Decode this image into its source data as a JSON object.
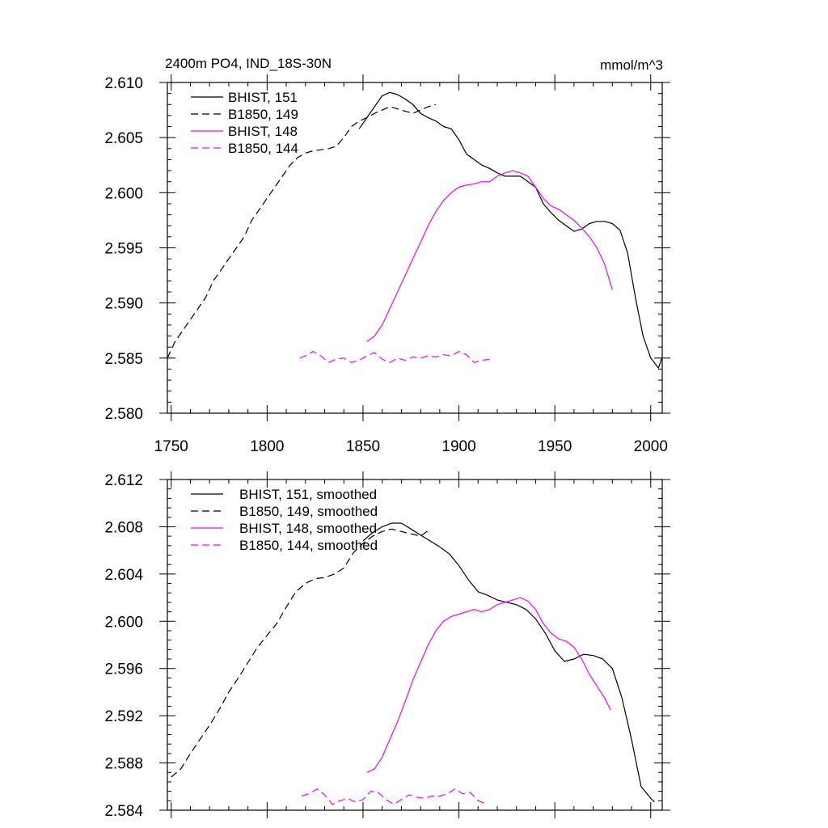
{
  "chart_data": [
    {
      "type": "line",
      "title": "2400m PO4, IND_18S-30N",
      "units": "mmol/m^3",
      "xlim": [
        1748,
        2006
      ],
      "ylim": [
        2.58,
        2.61
      ],
      "x_ticks": [
        "1750",
        "1800",
        "1850",
        "1900",
        "1950",
        "2000"
      ],
      "x_tick_values": [
        1750,
        1800,
        1850,
        1900,
        1950,
        2000
      ],
      "y_ticks": [
        "2.580",
        "2.585",
        "2.590",
        "2.595",
        "2.600",
        "2.605",
        "2.610"
      ],
      "y_tick_values": [
        2.58,
        2.585,
        2.59,
        2.595,
        2.6,
        2.605,
        2.61
      ],
      "legend_position": "top-left",
      "series": [
        {
          "name": "BHIST, 151",
          "color": "#000000",
          "dash": "solid",
          "x": [
            1848,
            1852,
            1856,
            1860,
            1864,
            1868,
            1872,
            1876,
            1880,
            1884,
            1888,
            1892,
            1896,
            1900,
            1904,
            1908,
            1912,
            1916,
            1920,
            1924,
            1928,
            1932,
            1936,
            1940,
            1944,
            1948,
            1952,
            1956,
            1960,
            1964,
            1968,
            1972,
            1976,
            1980,
            1984,
            1988,
            1992,
            1996,
            2000,
            2004,
            2006
          ],
          "y": [
            2.6058,
            2.6068,
            2.6078,
            2.6088,
            2.6091,
            2.6089,
            2.6085,
            2.608,
            2.6072,
            2.6068,
            2.6065,
            2.606,
            2.6058,
            2.6048,
            2.6035,
            2.603,
            2.6025,
            2.6022,
            2.6018,
            2.6015,
            2.6015,
            2.6015,
            2.601,
            2.6005,
            2.599,
            2.5982,
            2.5975,
            2.597,
            2.5965,
            2.5967,
            2.5972,
            2.5974,
            2.5974,
            2.5972,
            2.5966,
            2.5945,
            2.5905,
            2.587,
            2.585,
            2.5841,
            2.5851
          ]
        },
        {
          "name": "B1850, 149",
          "color": "#000000",
          "dash": "dashed",
          "x": [
            1748,
            1752,
            1756,
            1760,
            1764,
            1768,
            1772,
            1776,
            1780,
            1784,
            1788,
            1792,
            1796,
            1800,
            1804,
            1808,
            1812,
            1816,
            1820,
            1824,
            1828,
            1832,
            1836,
            1840,
            1844,
            1848,
            1852,
            1856,
            1860,
            1864,
            1868,
            1872,
            1876,
            1880,
            1884,
            1888
          ],
          "y": [
            2.585,
            2.5865,
            2.5875,
            2.5885,
            2.5895,
            2.5905,
            2.592,
            2.593,
            2.594,
            2.595,
            2.596,
            2.5975,
            2.5985,
            2.5995,
            2.6005,
            2.6015,
            2.6025,
            2.6032,
            2.6036,
            2.6038,
            2.6039,
            2.604,
            2.6042,
            2.605,
            2.606,
            2.6065,
            2.6068,
            2.6072,
            2.6075,
            2.6078,
            2.6076,
            2.6074,
            2.6072,
            2.6075,
            2.6078,
            2.608
          ]
        },
        {
          "name": "BHIST, 148",
          "color": "#ff00ff",
          "dash": "solid",
          "x": [
            1852,
            1856,
            1860,
            1864,
            1868,
            1872,
            1876,
            1880,
            1884,
            1888,
            1892,
            1896,
            1900,
            1904,
            1908,
            1912,
            1916,
            1920,
            1924,
            1928,
            1932,
            1936,
            1940,
            1944,
            1948,
            1952,
            1956,
            1960,
            1964,
            1968,
            1972,
            1976,
            1980
          ],
          "y": [
            2.5865,
            2.587,
            2.588,
            2.5895,
            2.591,
            2.5925,
            2.594,
            2.5955,
            2.597,
            2.5983,
            2.5993,
            2.6,
            2.6005,
            2.6007,
            2.6008,
            2.601,
            2.601,
            2.6015,
            2.6018,
            2.602,
            2.6018,
            2.6015,
            2.6005,
            2.5995,
            2.5988,
            2.5985,
            2.598,
            2.5975,
            2.5968,
            2.596,
            2.595,
            2.5935,
            2.5912
          ]
        },
        {
          "name": "B1850, 144",
          "color": "#ff00ff",
          "dash": "dashed",
          "x": [
            1817,
            1820,
            1824,
            1828,
            1832,
            1836,
            1840,
            1844,
            1848,
            1852,
            1856,
            1860,
            1864,
            1868,
            1872,
            1876,
            1880,
            1884,
            1888,
            1892,
            1896,
            1900,
            1904,
            1908,
            1912,
            1916
          ],
          "y": [
            2.585,
            2.5852,
            2.5856,
            2.5852,
            2.5846,
            2.5849,
            2.585,
            2.5846,
            2.5848,
            2.5852,
            2.5855,
            2.5849,
            2.5846,
            2.585,
            2.5848,
            2.5851,
            2.585,
            2.5852,
            2.5851,
            2.5853,
            2.5852,
            2.5856,
            2.5853,
            2.5846,
            2.5848,
            2.5849
          ]
        }
      ]
    },
    {
      "type": "line",
      "xlim": [
        1748,
        2006
      ],
      "ylim": [
        2.584,
        2.612
      ],
      "x_tick_values": [
        1750,
        1800,
        1850,
        1900,
        1950,
        2000
      ],
      "y_ticks": [
        "2.584",
        "2.588",
        "2.592",
        "2.596",
        "2.600",
        "2.604",
        "2.608",
        "2.612"
      ],
      "y_tick_values": [
        2.584,
        2.588,
        2.592,
        2.596,
        2.6,
        2.604,
        2.608,
        2.612
      ],
      "legend_position": "top-left",
      "series": [
        {
          "name": "BHIST, 151, smoothed",
          "color": "#000000",
          "dash": "solid",
          "x": [
            1850,
            1855,
            1860,
            1865,
            1870,
            1875,
            1880,
            1885,
            1890,
            1895,
            1900,
            1905,
            1910,
            1915,
            1920,
            1925,
            1930,
            1935,
            1940,
            1945,
            1950,
            1955,
            1960,
            1965,
            1970,
            1975,
            1980,
            1985,
            1990,
            1995,
            2000,
            2002
          ],
          "y": [
            2.6068,
            2.6075,
            2.608,
            2.6083,
            2.6083,
            2.6078,
            2.6073,
            2.6068,
            2.6063,
            2.6057,
            2.6047,
            2.6035,
            2.6025,
            2.6022,
            2.6018,
            2.6016,
            2.6014,
            2.601,
            2.6002,
            2.599,
            2.5975,
            2.5966,
            2.5968,
            2.5972,
            2.5971,
            2.5968,
            2.596,
            2.5935,
            2.59,
            2.586,
            2.585,
            2.5847
          ]
        },
        {
          "name": "B1850, 149, smoothed",
          "color": "#000000",
          "dash": "dashed",
          "x": [
            1750,
            1755,
            1760,
            1765,
            1770,
            1775,
            1780,
            1785,
            1790,
            1795,
            1800,
            1805,
            1810,
            1815,
            1820,
            1825,
            1830,
            1835,
            1840,
            1845,
            1850,
            1855,
            1860,
            1865,
            1870,
            1875,
            1880,
            1885
          ],
          "y": [
            2.5868,
            2.5875,
            2.5888,
            2.59,
            2.5912,
            2.5925,
            2.594,
            2.5952,
            2.5965,
            2.5978,
            2.5988,
            2.5998,
            2.6012,
            2.6025,
            2.6032,
            2.6036,
            2.6037,
            2.604,
            2.6045,
            2.6058,
            2.6066,
            2.6072,
            2.6076,
            2.6078,
            2.6076,
            2.6074,
            2.6072,
            2.6078
          ]
        },
        {
          "name": "BHIST, 148, smoothed",
          "color": "#ff00ff",
          "dash": "solid",
          "x": [
            1852,
            1856,
            1860,
            1864,
            1868,
            1872,
            1876,
            1880,
            1884,
            1888,
            1892,
            1896,
            1900,
            1904,
            1908,
            1912,
            1916,
            1920,
            1924,
            1928,
            1932,
            1936,
            1940,
            1944,
            1948,
            1952,
            1956,
            1960,
            1964,
            1968,
            1972,
            1976,
            1979
          ],
          "y": [
            2.5872,
            2.5875,
            2.5885,
            2.59,
            2.5915,
            2.5932,
            2.595,
            2.5965,
            2.598,
            2.5992,
            2.6,
            2.6004,
            2.6006,
            2.6008,
            2.601,
            2.6008,
            2.601,
            2.6014,
            2.6016,
            2.6018,
            2.602,
            2.6017,
            2.601,
            2.5998,
            2.599,
            2.5985,
            2.5983,
            2.5978,
            2.5968,
            2.5955,
            2.5945,
            2.5935,
            2.5925
          ]
        },
        {
          "name": "B1850, 144, smoothed",
          "color": "#ff00ff",
          "dash": "dashed",
          "x": [
            1818,
            1822,
            1826,
            1830,
            1834,
            1838,
            1842,
            1846,
            1850,
            1854,
            1858,
            1862,
            1866,
            1870,
            1874,
            1878,
            1882,
            1886,
            1890,
            1894,
            1898,
            1902,
            1906,
            1910,
            1913
          ],
          "y": [
            2.5852,
            2.5854,
            2.5858,
            2.5853,
            2.5845,
            2.5848,
            2.585,
            2.5847,
            2.5849,
            2.5856,
            2.5855,
            2.5849,
            2.5845,
            2.5849,
            2.5853,
            2.5851,
            2.585,
            2.5852,
            2.5852,
            2.5854,
            2.5858,
            2.5854,
            2.5855,
            2.5848,
            2.5846
          ]
        }
      ]
    }
  ]
}
